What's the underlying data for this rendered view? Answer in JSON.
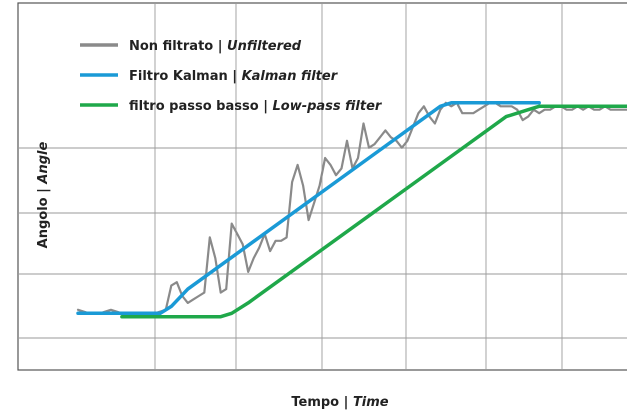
{
  "chart_data": {
    "type": "line",
    "xlabel": {
      "main": "Tempo",
      "sep": " | ",
      "italic": "Time"
    },
    "ylabel": {
      "main": "Angolo",
      "sep": " | ",
      "italic": "Angle"
    },
    "grid": true,
    "legend_position": "top-left",
    "x_range": [
      0,
      100
    ],
    "y_range": [
      0,
      100
    ],
    "series": [
      {
        "name": "Non filtrato",
        "name_en": "Unfiltered",
        "color": "#8a8a8a",
        "points": [
          [
            0,
            16
          ],
          [
            2,
            15
          ],
          [
            4,
            15
          ],
          [
            6,
            16
          ],
          [
            8,
            15
          ],
          [
            10,
            15
          ],
          [
            12,
            15
          ],
          [
            14,
            15
          ],
          [
            16,
            16
          ],
          [
            17,
            23
          ],
          [
            18,
            24
          ],
          [
            19,
            20
          ],
          [
            20,
            18
          ],
          [
            21,
            19
          ],
          [
            22,
            20
          ],
          [
            23,
            21
          ],
          [
            24,
            37
          ],
          [
            25,
            31
          ],
          [
            26,
            21
          ],
          [
            27,
            22
          ],
          [
            28,
            41
          ],
          [
            29,
            38
          ],
          [
            30,
            35
          ],
          [
            31,
            27
          ],
          [
            32,
            31
          ],
          [
            33,
            34
          ],
          [
            34,
            38
          ],
          [
            35,
            33
          ],
          [
            36,
            36
          ],
          [
            37,
            36
          ],
          [
            38,
            37
          ],
          [
            39,
            53
          ],
          [
            40,
            58
          ],
          [
            41,
            52
          ],
          [
            42,
            42
          ],
          [
            43,
            47
          ],
          [
            44,
            52
          ],
          [
            45,
            60
          ],
          [
            46,
            58
          ],
          [
            47,
            55
          ],
          [
            48,
            57
          ],
          [
            49,
            65
          ],
          [
            50,
            57
          ],
          [
            51,
            60
          ],
          [
            52,
            70
          ],
          [
            53,
            63
          ],
          [
            54,
            64
          ],
          [
            55,
            66
          ],
          [
            56,
            68
          ],
          [
            57,
            66
          ],
          [
            58,
            65
          ],
          [
            59,
            63
          ],
          [
            60,
            65
          ],
          [
            61,
            69
          ],
          [
            62,
            73
          ],
          [
            63,
            75
          ],
          [
            64,
            72
          ],
          [
            65,
            70
          ],
          [
            66,
            74
          ],
          [
            67,
            76
          ],
          [
            68,
            75
          ],
          [
            69,
            76
          ],
          [
            70,
            73
          ],
          [
            71,
            73
          ],
          [
            72,
            73
          ],
          [
            73,
            74
          ],
          [
            74,
            75
          ],
          [
            75,
            76
          ],
          [
            76,
            76
          ],
          [
            77,
            75
          ],
          [
            78,
            75
          ],
          [
            79,
            75
          ],
          [
            80,
            74
          ],
          [
            81,
            71
          ],
          [
            82,
            72
          ],
          [
            83,
            74
          ],
          [
            84,
            73
          ],
          [
            85,
            74
          ],
          [
            86,
            74
          ],
          [
            87,
            75
          ],
          [
            88,
            75
          ],
          [
            89,
            74
          ],
          [
            90,
            74
          ],
          [
            91,
            75
          ],
          [
            92,
            74
          ],
          [
            93,
            75
          ],
          [
            94,
            74
          ],
          [
            95,
            74
          ],
          [
            96,
            75
          ],
          [
            97,
            74
          ],
          [
            98,
            74
          ],
          [
            100,
            74
          ]
        ]
      },
      {
        "name": "Filtro Kalman",
        "name_en": "Kalman filter",
        "color": "#1a9ad6",
        "points": [
          [
            0,
            15
          ],
          [
            15,
            15
          ],
          [
            17,
            17
          ],
          [
            20,
            22
          ],
          [
            66,
            75
          ],
          [
            68,
            76
          ],
          [
            84,
            76
          ]
        ]
      },
      {
        "name": "filtro passo basso",
        "name_en": "Low-pass filter",
        "color": "#1fa84a",
        "points": [
          [
            8,
            14
          ],
          [
            26,
            14
          ],
          [
            28,
            15
          ],
          [
            31,
            18
          ],
          [
            78,
            72
          ],
          [
            82,
            74
          ],
          [
            84,
            75
          ],
          [
            100,
            75
          ]
        ]
      }
    ]
  }
}
